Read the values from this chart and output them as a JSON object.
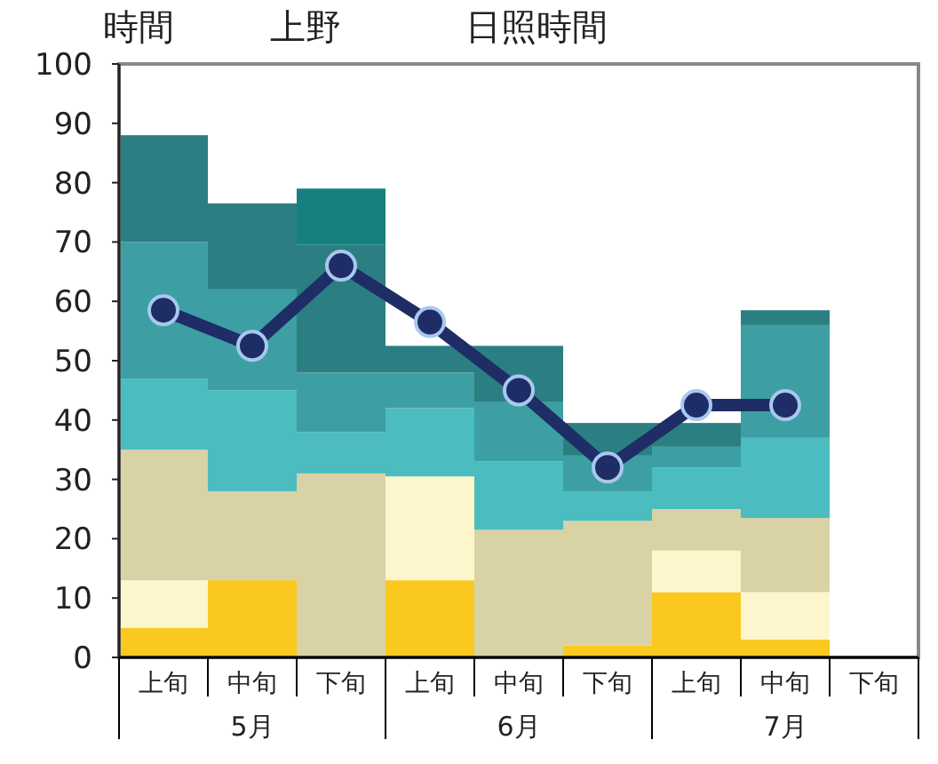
{
  "chart_data": {
    "type": "bar",
    "title": "上野",
    "subtitle": "日照時間",
    "ylabel": "時間",
    "stacked": true,
    "categories": [
      "上旬",
      "中旬",
      "下旬",
      "上旬",
      "中旬",
      "下旬",
      "上旬",
      "中旬",
      "下旬"
    ],
    "annotations": [
      "5月",
      "6月",
      "7月"
    ],
    "ylim": [
      0,
      100
    ],
    "yticks": [
      0,
      10,
      20,
      30,
      40,
      50,
      60,
      70,
      80,
      90,
      100
    ],
    "series": [
      {
        "color": "#fac81e",
        "values": [
          5,
          13,
          0,
          13,
          0,
          2,
          11,
          3,
          null
        ]
      },
      {
        "color": "#fdf6cc",
        "values": [
          8,
          0,
          0,
          17.5,
          0,
          0,
          7,
          8,
          null
        ]
      },
      {
        "color": "#d9d2a4",
        "values": [
          22,
          15,
          31,
          0,
          21.5,
          21,
          7,
          12.5,
          null
        ]
      },
      {
        "color": "#4bbcc0",
        "values": [
          12,
          17,
          7,
          11.5,
          11.5,
          5,
          7,
          13.5,
          null
        ]
      },
      {
        "color": "#3d9fa3",
        "values": [
          23,
          17,
          10,
          6,
          10,
          6,
          3.5,
          19,
          null
        ]
      },
      {
        "color": "#2b7f82",
        "values": [
          18,
          14.5,
          21.5,
          4.5,
          9.5,
          5.5,
          4,
          2.5,
          null
        ]
      },
      {
        "color": "#168080",
        "values": [
          0,
          0,
          9.5,
          0,
          0,
          0,
          0,
          0,
          null
        ]
      },
      {
        "type": "line",
        "color": "#1f2d66",
        "marker": "circle",
        "line_style": "solid",
        "values": [
          58.5,
          52.5,
          66,
          56.5,
          45,
          32,
          42.5,
          42.5,
          null
        ]
      }
    ]
  }
}
